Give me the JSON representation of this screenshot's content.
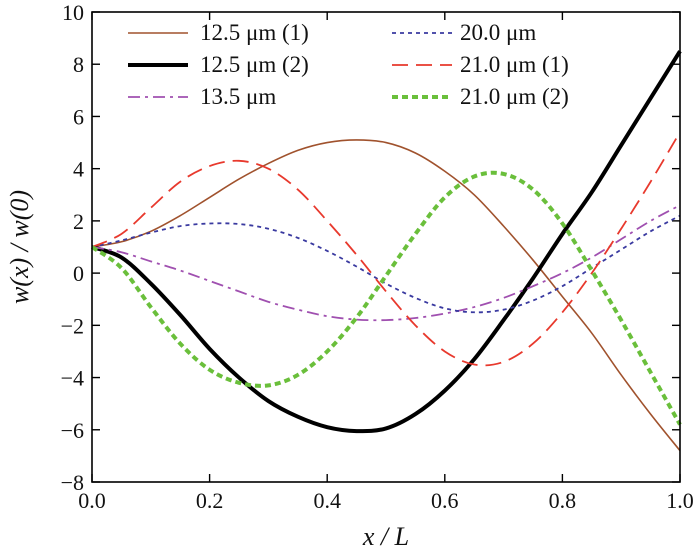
{
  "chart_data": {
    "type": "line",
    "title": "",
    "xlabel": "x / L",
    "ylabel": "w(x) / w(0)",
    "xlim": [
      0.0,
      1.0
    ],
    "ylim": [
      -8,
      10
    ],
    "xticks": [
      0.0,
      0.2,
      0.4,
      0.6,
      0.8,
      1.0
    ],
    "xtick_labels": [
      "0.0",
      "0.2",
      "0.4",
      "0.6",
      "0.8",
      "1.0"
    ],
    "yticks": [
      -8,
      -6,
      -4,
      -2,
      0,
      2,
      4,
      6,
      8,
      10
    ],
    "ytick_labels": [
      "−8",
      "−6",
      "−4",
      "−2",
      "0",
      "2",
      "4",
      "6",
      "8",
      "10"
    ],
    "grid": false,
    "legend_position": "top",
    "series": [
      {
        "name": "12.5 μm (1)",
        "color": "#a0522d",
        "style": "solid",
        "width": 1.6,
        "x": [
          0.0,
          0.05,
          0.1,
          0.15,
          0.2,
          0.25,
          0.3,
          0.35,
          0.4,
          0.45,
          0.5,
          0.55,
          0.6,
          0.65,
          0.7,
          0.75,
          0.8,
          0.85,
          0.9,
          0.95,
          1.0
        ],
        "y": [
          1.0,
          1.2,
          1.6,
          2.2,
          2.9,
          3.6,
          4.2,
          4.7,
          5.0,
          5.1,
          5.0,
          4.6,
          3.9,
          3.0,
          1.8,
          0.5,
          -0.9,
          -2.3,
          -3.9,
          -5.4,
          -6.8
        ]
      },
      {
        "name": "12.5 μm (2)",
        "color": "#000000",
        "style": "solid",
        "width": 4,
        "x": [
          0.0,
          0.05,
          0.1,
          0.15,
          0.2,
          0.25,
          0.3,
          0.35,
          0.4,
          0.45,
          0.5,
          0.55,
          0.6,
          0.65,
          0.7,
          0.75,
          0.8,
          0.85,
          0.9,
          0.95,
          1.0
        ],
        "y": [
          1.0,
          0.6,
          -0.4,
          -1.6,
          -2.9,
          -4.0,
          -4.9,
          -5.5,
          -5.9,
          -6.05,
          -5.95,
          -5.4,
          -4.5,
          -3.3,
          -1.8,
          -0.2,
          1.5,
          3.1,
          4.9,
          6.7,
          8.5
        ]
      },
      {
        "name": "13.5 μm",
        "color": "#a050b0",
        "style": "dashdot",
        "width": 1.8,
        "x": [
          0.0,
          0.05,
          0.1,
          0.15,
          0.2,
          0.25,
          0.3,
          0.35,
          0.4,
          0.45,
          0.5,
          0.55,
          0.6,
          0.65,
          0.7,
          0.75,
          0.8,
          0.85,
          0.9,
          0.95,
          1.0
        ],
        "y": [
          1.0,
          0.8,
          0.45,
          0.1,
          -0.3,
          -0.7,
          -1.1,
          -1.4,
          -1.65,
          -1.78,
          -1.8,
          -1.72,
          -1.55,
          -1.3,
          -0.95,
          -0.5,
          0.0,
          0.6,
          1.3,
          2.0,
          2.6
        ]
      },
      {
        "name": "20.0 μm",
        "color": "#3a3aa0",
        "style": "dotted",
        "width": 1.8,
        "x": [
          0.0,
          0.05,
          0.1,
          0.15,
          0.2,
          0.25,
          0.3,
          0.35,
          0.4,
          0.45,
          0.5,
          0.55,
          0.6,
          0.65,
          0.7,
          0.75,
          0.8,
          0.85,
          0.9,
          0.95,
          1.0
        ],
        "y": [
          1.0,
          1.25,
          1.55,
          1.8,
          1.9,
          1.88,
          1.7,
          1.35,
          0.85,
          0.25,
          -0.4,
          -0.95,
          -1.35,
          -1.5,
          -1.4,
          -1.05,
          -0.5,
          0.2,
          0.9,
          1.6,
          2.2
        ]
      },
      {
        "name": "21.0 μm (1)",
        "color": "#e8392d",
        "style": "longdash",
        "width": 1.8,
        "x": [
          0.0,
          0.05,
          0.1,
          0.15,
          0.2,
          0.25,
          0.3,
          0.35,
          0.4,
          0.45,
          0.5,
          0.55,
          0.6,
          0.65,
          0.7,
          0.75,
          0.8,
          0.85,
          0.9,
          0.95,
          1.0
        ],
        "y": [
          1.0,
          1.5,
          2.5,
          3.5,
          4.1,
          4.3,
          4.0,
          3.2,
          2.0,
          0.7,
          -0.7,
          -2.0,
          -3.0,
          -3.5,
          -3.4,
          -2.7,
          -1.5,
          0.0,
          1.7,
          3.5,
          5.4
        ]
      },
      {
        "name": "21.0 μm (2)",
        "color": "#6abf3b",
        "style": "dotted-thick",
        "width": 4,
        "x": [
          0.0,
          0.05,
          0.1,
          0.15,
          0.2,
          0.25,
          0.3,
          0.35,
          0.4,
          0.45,
          0.5,
          0.55,
          0.6,
          0.65,
          0.7,
          0.75,
          0.8,
          0.85,
          0.9,
          0.95,
          1.0
        ],
        "y": [
          1.0,
          0.2,
          -1.3,
          -2.7,
          -3.7,
          -4.2,
          -4.3,
          -3.9,
          -3.0,
          -1.7,
          -0.1,
          1.5,
          2.9,
          3.7,
          3.8,
          3.2,
          1.9,
          0.1,
          -1.8,
          -3.8,
          -5.8
        ]
      }
    ]
  }
}
